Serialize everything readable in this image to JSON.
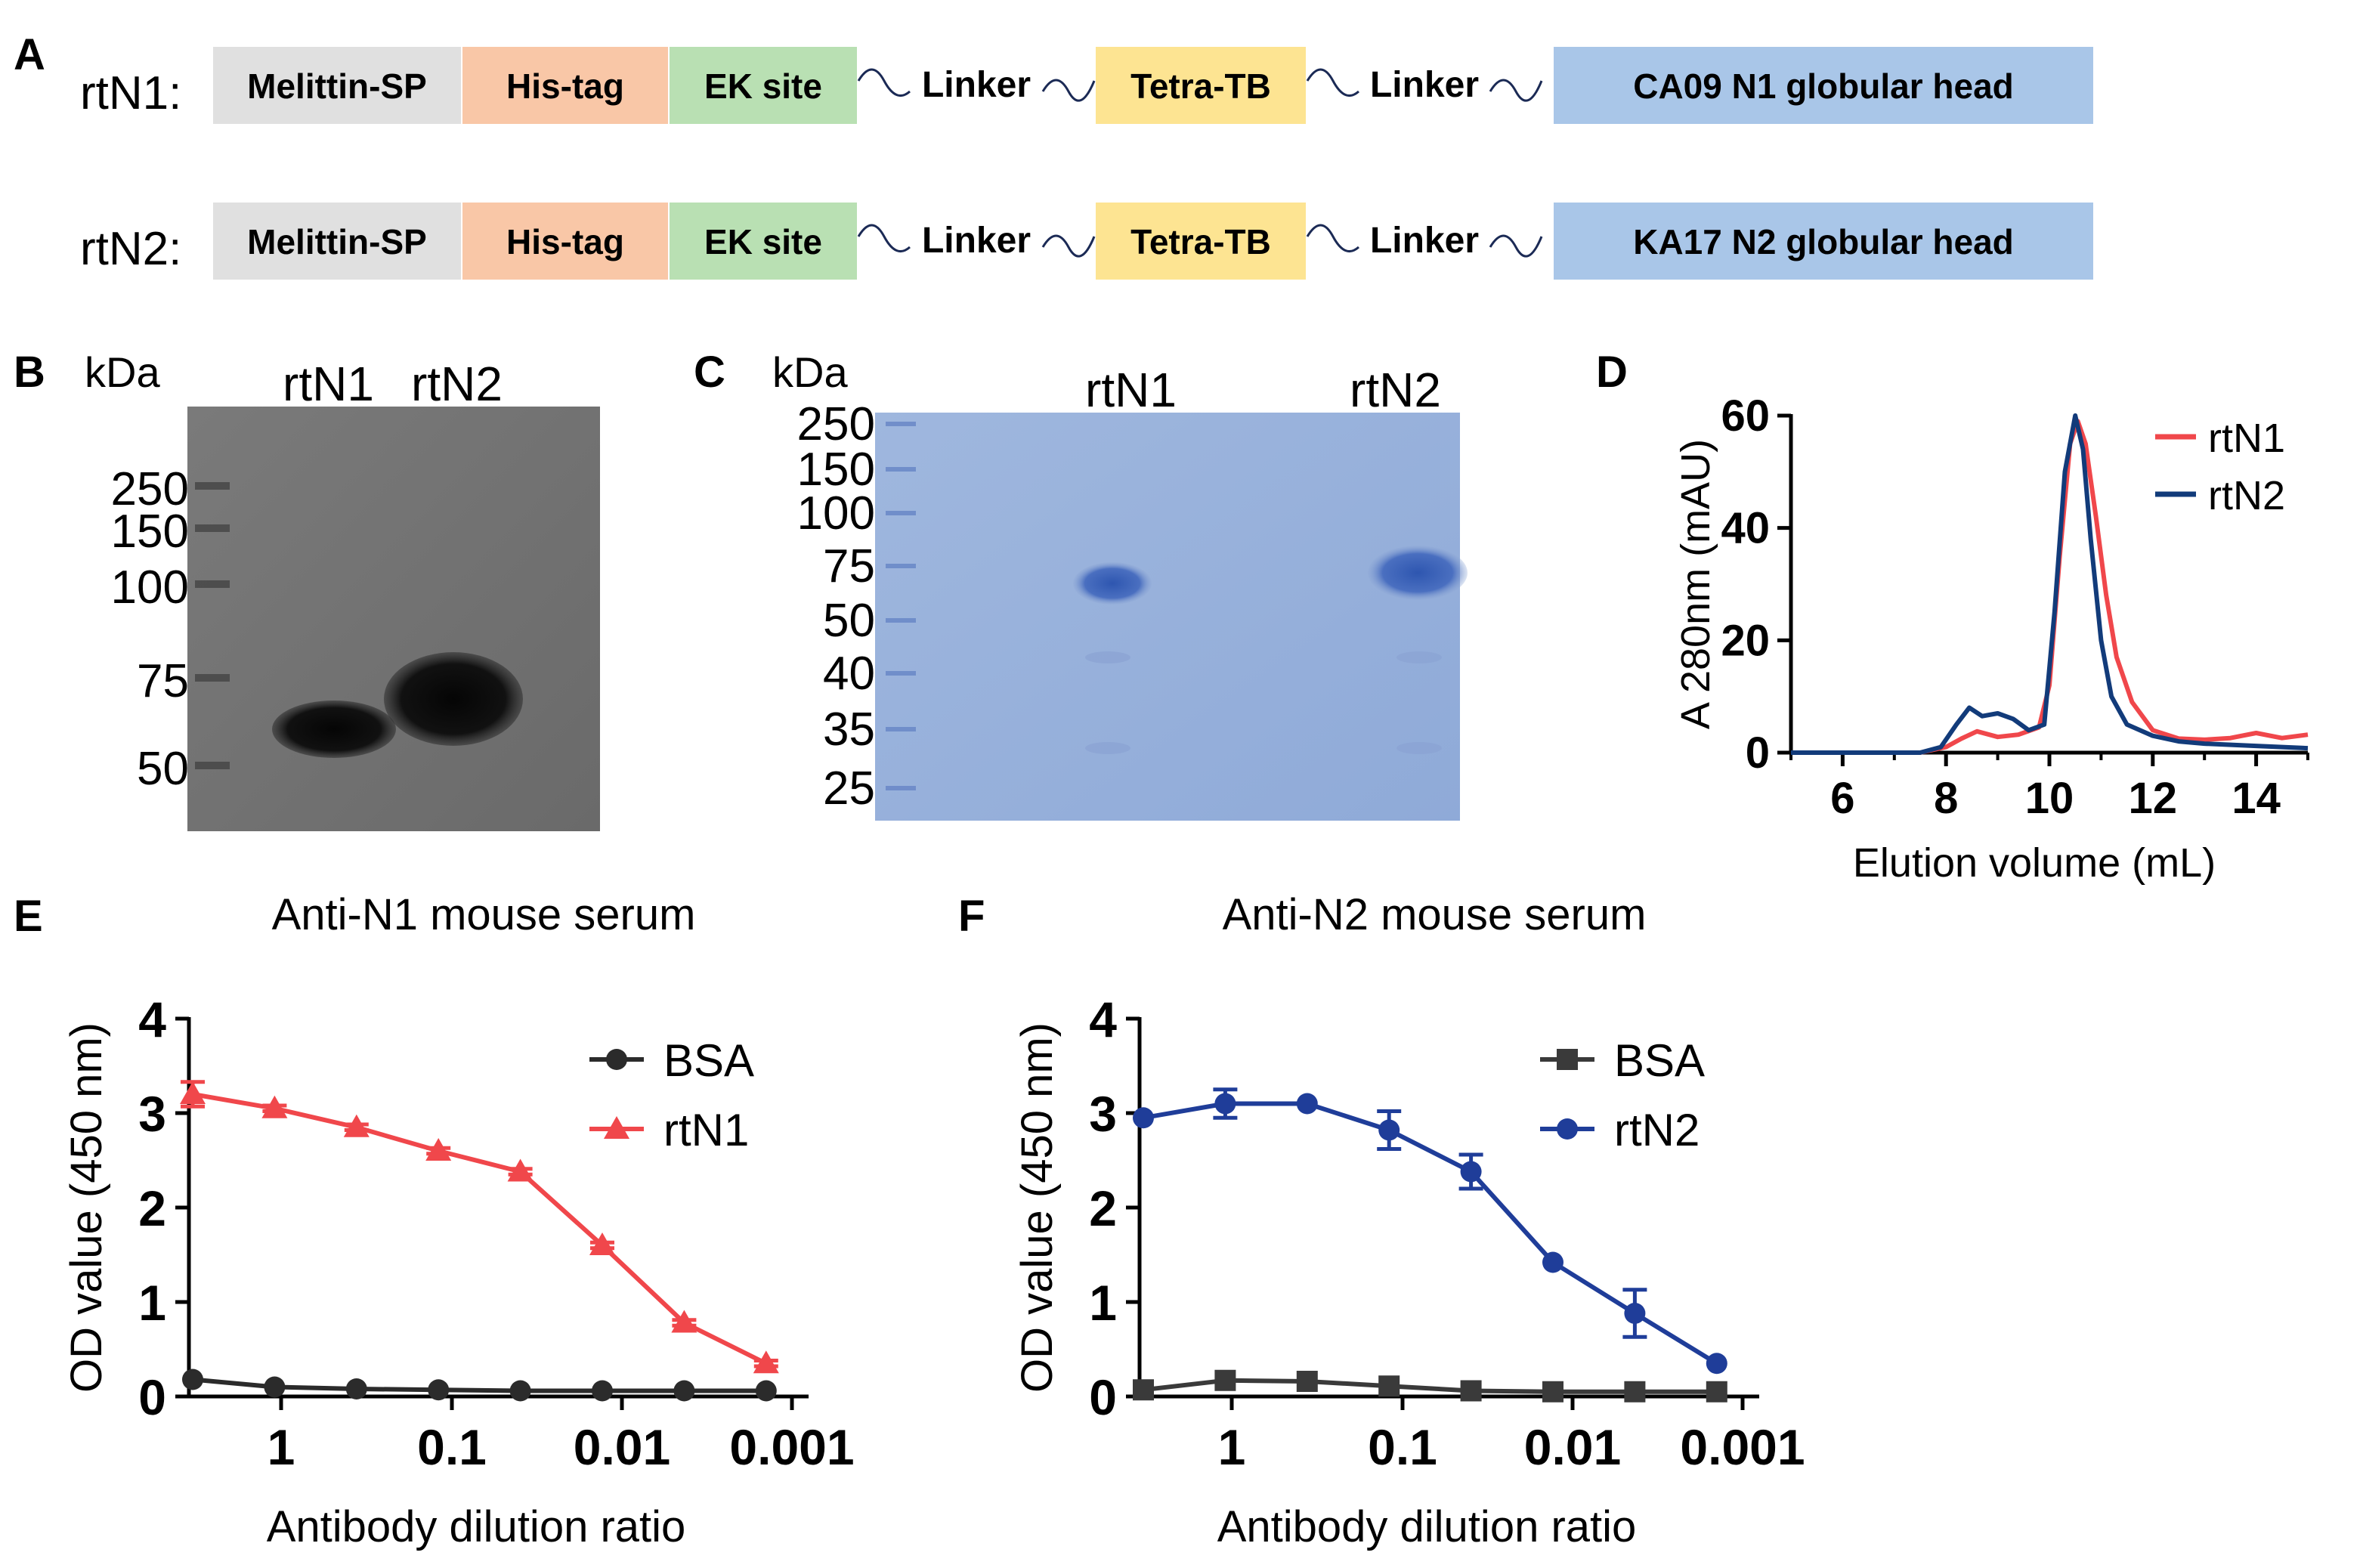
{
  "panel_letters": {
    "A": "A",
    "B": "B",
    "C": "C",
    "D": "D",
    "E": "E",
    "F": "F"
  },
  "panel_a": {
    "constructs": [
      {
        "name": "rtN1:",
        "segments": [
          {
            "label": "Melittin-SP",
            "color": "#e0e0e0"
          },
          {
            "label": "His-tag",
            "color": "#f9c7a7"
          },
          {
            "label": "EK site",
            "color": "#b9e0b3"
          },
          {
            "label": "Linker",
            "kind": "linker"
          },
          {
            "label": "Tetra-TB",
            "color": "#fde492"
          },
          {
            "label": "Linker",
            "kind": "linker"
          },
          {
            "label": "CA09 N1 globular head",
            "color": "#a9c6e8"
          }
        ]
      },
      {
        "name": "rtN2:",
        "segments": [
          {
            "label": "Melittin-SP",
            "color": "#e0e0e0"
          },
          {
            "label": "His-tag",
            "color": "#f9c7a7"
          },
          {
            "label": "EK site",
            "color": "#b9e0b3"
          },
          {
            "label": "Linker",
            "kind": "linker"
          },
          {
            "label": "Tetra-TB",
            "color": "#fde492"
          },
          {
            "label": "Linker",
            "kind": "linker"
          },
          {
            "label": "KA17 N2 globular head",
            "color": "#a9c6e8"
          }
        ]
      }
    ]
  },
  "panel_b": {
    "unit": "kDa",
    "lanes": [
      "rtN1",
      "rtN2"
    ],
    "markers": [
      "250",
      "150",
      "100",
      "75",
      "50"
    ]
  },
  "panel_c": {
    "unit": "kDa",
    "lanes": [
      "rtN1",
      "rtN2"
    ],
    "markers": [
      "250",
      "150",
      "100",
      "75",
      "50",
      "40",
      "35",
      "25"
    ]
  },
  "chart_data": [
    {
      "id": "D",
      "type": "line",
      "title": "",
      "xlabel": "Elution volume (mL)",
      "ylabel": "A 280nm (mAU)",
      "xlim": [
        5,
        15
      ],
      "ylim": [
        0,
        60
      ],
      "xticks": [
        "6",
        "8",
        "10",
        "12",
        "14"
      ],
      "yticks": [
        "0",
        "20",
        "40",
        "60"
      ],
      "legend": "top-right",
      "series": [
        {
          "name": "rtN1",
          "color": "#f0474b",
          "x": [
            5.0,
            7.5,
            8.0,
            8.3,
            8.6,
            9.0,
            9.4,
            9.8,
            10.0,
            10.2,
            10.4,
            10.55,
            10.7,
            10.9,
            11.1,
            11.3,
            11.6,
            12.0,
            12.5,
            13.0,
            13.5,
            14.0,
            14.5,
            15.0
          ],
          "y": [
            0,
            0,
            1.0,
            2.5,
            3.8,
            2.8,
            3.2,
            4.5,
            12,
            35,
            55,
            59,
            55,
            42,
            28,
            17,
            9,
            4,
            2.5,
            2.3,
            2.6,
            3.5,
            2.6,
            3.2
          ]
        },
        {
          "name": "rtN2",
          "color": "#123b7a",
          "x": [
            5.0,
            7.5,
            7.9,
            8.2,
            8.45,
            8.7,
            9.0,
            9.3,
            9.6,
            9.9,
            10.1,
            10.3,
            10.5,
            10.65,
            10.8,
            11.0,
            11.2,
            11.5,
            12.0,
            12.5,
            13.0,
            14.0,
            15.0
          ],
          "y": [
            0,
            0,
            1.0,
            5.0,
            8.0,
            6.5,
            7.0,
            6.0,
            4.0,
            5.0,
            25,
            50,
            60,
            54,
            38,
            20,
            10,
            5,
            3,
            2,
            1.6,
            1.2,
            0.8
          ]
        }
      ]
    },
    {
      "id": "E",
      "type": "line",
      "title": "Anti-N1 mouse serum",
      "xlabel": "Antibody dilution ratio",
      "ylabel": "OD value (450 nm)",
      "x_scale": "log, decreasing",
      "xticks": [
        "1",
        "0.1",
        "0.01",
        "0.001"
      ],
      "yticks": [
        "0",
        "1",
        "2",
        "3",
        "4"
      ],
      "ylim": [
        0,
        4
      ],
      "legend": "top-right",
      "categories": [
        "3.3",
        "1",
        "0.33",
        "0.11",
        "0.037",
        "0.012",
        "0.0041",
        "0.0014"
      ],
      "series": [
        {
          "name": "BSA",
          "color": "#2b2b2b",
          "marker": "circle",
          "values": [
            0.18,
            0.1,
            0.08,
            0.07,
            0.06,
            0.06,
            0.06,
            0.06
          ],
          "errors": [
            0,
            0,
            0,
            0,
            0,
            0,
            0,
            0
          ]
        },
        {
          "name": "rtN1",
          "color": "#f0474b",
          "marker": "triangle",
          "values": [
            3.2,
            3.05,
            2.85,
            2.6,
            2.38,
            1.6,
            0.78,
            0.35
          ],
          "errors": [
            0.13,
            0.03,
            0.03,
            0.03,
            0.03,
            0.03,
            0.03,
            0.03
          ]
        }
      ]
    },
    {
      "id": "F",
      "type": "line",
      "title": "Anti-N2 mouse serum",
      "xlabel": "Antibody dilution ratio",
      "ylabel": "OD value (450 nm)",
      "x_scale": "log, decreasing",
      "xticks": [
        "1",
        "0.1",
        "0.01",
        "0.001"
      ],
      "yticks": [
        "0",
        "1",
        "2",
        "3",
        "4"
      ],
      "ylim": [
        0,
        4
      ],
      "legend": "top-right",
      "categories": [
        "3.3",
        "1",
        "0.33",
        "0.11",
        "0.037",
        "0.012",
        "0.0041",
        "0.0014"
      ],
      "series": [
        {
          "name": "BSA",
          "color": "#3a3a3a",
          "marker": "square",
          "values": [
            0.07,
            0.17,
            0.16,
            0.11,
            0.06,
            0.05,
            0.05,
            0.05
          ],
          "errors": [
            0,
            0,
            0,
            0,
            0,
            0,
            0,
            0
          ]
        },
        {
          "name": "rtN2",
          "color": "#1f3d99",
          "marker": "circle",
          "values": [
            2.95,
            3.1,
            3.1,
            2.82,
            2.38,
            1.42,
            0.88,
            0.35
          ],
          "errors": [
            0,
            0.15,
            0,
            0.2,
            0.18,
            0,
            0.25,
            0
          ]
        }
      ]
    }
  ]
}
